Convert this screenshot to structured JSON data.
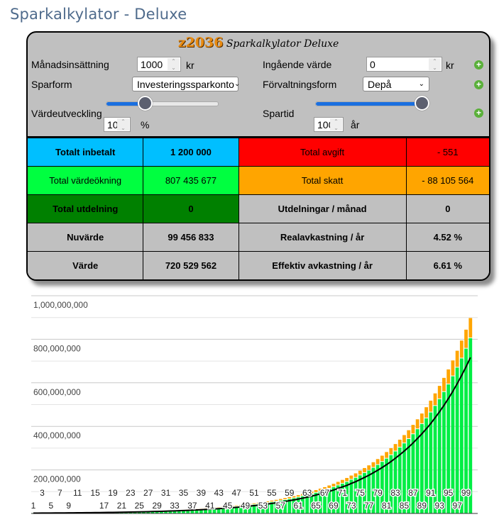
{
  "title": "Sparkalkylator - Deluxe",
  "logo": {
    "number": "z2036",
    "text": "Sparkalkylator Deluxe"
  },
  "form": {
    "monthly_label": "Månadsinsättning",
    "monthly_value": "1000",
    "monthly_unit": "kr",
    "initial_label": "Ingående värde",
    "initial_value": "0",
    "initial_unit": "kr",
    "savings_form_label": "Sparform",
    "savings_form_value": "Investeringssparkonto",
    "management_label": "Förvaltningsform",
    "management_value": "Depå",
    "growth_label": "Värdeutveckling",
    "growth_value": "10",
    "growth_unit": "%",
    "growth_slider_fraction": 0.35,
    "period_label": "Spartid",
    "period_value": "100",
    "period_unit": "år",
    "period_slider_fraction": 1.0
  },
  "results": [
    {
      "label": "Totalt inbetalt",
      "value": "1 200 000",
      "label2": "Total avgift",
      "value2": "- 551",
      "bg": "#00bfff",
      "bg2": "#ff0000",
      "bold": true
    },
    {
      "label": "Total värdeökning",
      "value": "807 435 677",
      "label2": "Total skatt",
      "value2": "- 88 105 564",
      "bg": "#00ff40",
      "bg2": "#ffa500",
      "bold": false
    },
    {
      "label": "Total utdelning",
      "value": "0",
      "label2": "Utdelningar / månad",
      "value2": "0",
      "bg": "#008000",
      "bg2": "#c0c0c0",
      "bold": true
    },
    {
      "label": "Nuvärde",
      "value": "99 456 833",
      "label2": "Realavkastning / år",
      "value2": "4.52 %",
      "bg": "#c0c0c0",
      "bg2": "#c0c0c0",
      "bold": true
    },
    {
      "label": "Värde",
      "value": "720 529 562",
      "label2": "Effektiv avkastning / år",
      "value2": "6.61 %",
      "bg": "#c0c0c0",
      "bg2": "#c0c0c0",
      "bold": true
    }
  ],
  "chart_data": {
    "type": "bar",
    "ylim": [
      0,
      1000000000
    ],
    "yticks": [
      "200,000,000",
      "400,000,000",
      "600,000,000",
      "800,000,000",
      "1,000,000,000"
    ],
    "ytick_values": [
      200000000,
      400000000,
      600000000,
      800000000,
      1000000000
    ],
    "grid": true,
    "x": "years 1-100",
    "xtick_labels_upper": [
      "3",
      "7",
      "11",
      "15",
      "19",
      "23",
      "27",
      "31",
      "35",
      "39",
      "43",
      "47",
      "51",
      "55",
      "59",
      "63",
      "67",
      "71",
      "75",
      "79",
      "83",
      "87",
      "91",
      "95",
      "99"
    ],
    "xtick_labels_lower": [
      "1",
      "5",
      "9",
      "",
      "17",
      "21",
      "25",
      "29",
      "33",
      "37",
      "41",
      "45",
      "49",
      "53",
      "57",
      "61",
      "65",
      "69",
      "73",
      "77",
      "81",
      "85",
      "89",
      "93",
      "97"
    ],
    "series_value_millions": [
      1.9,
      2.0,
      2.1,
      2.3,
      2.4,
      2.6,
      2.7,
      2.9,
      3.1,
      3.3,
      3.5,
      3.7,
      4.0,
      4.2,
      4.5,
      4.8,
      5.1,
      5.4,
      5.7,
      6.1,
      6.4,
      6.9,
      7.3,
      7.7,
      8.2,
      8.7,
      9.3,
      9.9,
      10.5,
      11.2,
      11.9,
      12.6,
      13.4,
      14.3,
      15.2,
      16.1,
      17.2,
      18.2,
      19.4,
      20.6,
      21.9,
      23.3,
      24.7,
      26.3,
      28.0,
      29.7,
      31.6,
      33.6,
      35.7,
      38.0,
      40.3,
      42.9,
      45.6,
      48.5,
      51.5,
      54.8,
      58.2,
      61.9,
      65.8,
      70,
      74,
      79,
      84,
      89,
      95,
      101,
      107,
      114,
      121,
      129,
      137,
      145,
      155,
      164,
      175,
      186,
      197,
      210,
      223,
      237,
      252,
      268,
      285,
      303,
      322,
      342,
      364,
      387,
      411,
      437,
      464,
      494,
      525,
      558,
      593,
      630,
      670,
      712,
      757,
      805
    ],
    "tax_ratio": 0.113,
    "line_ratio": 0.89,
    "colors": {
      "value": "#00ee44",
      "tax": "#ffa500",
      "line": "#000000"
    }
  }
}
